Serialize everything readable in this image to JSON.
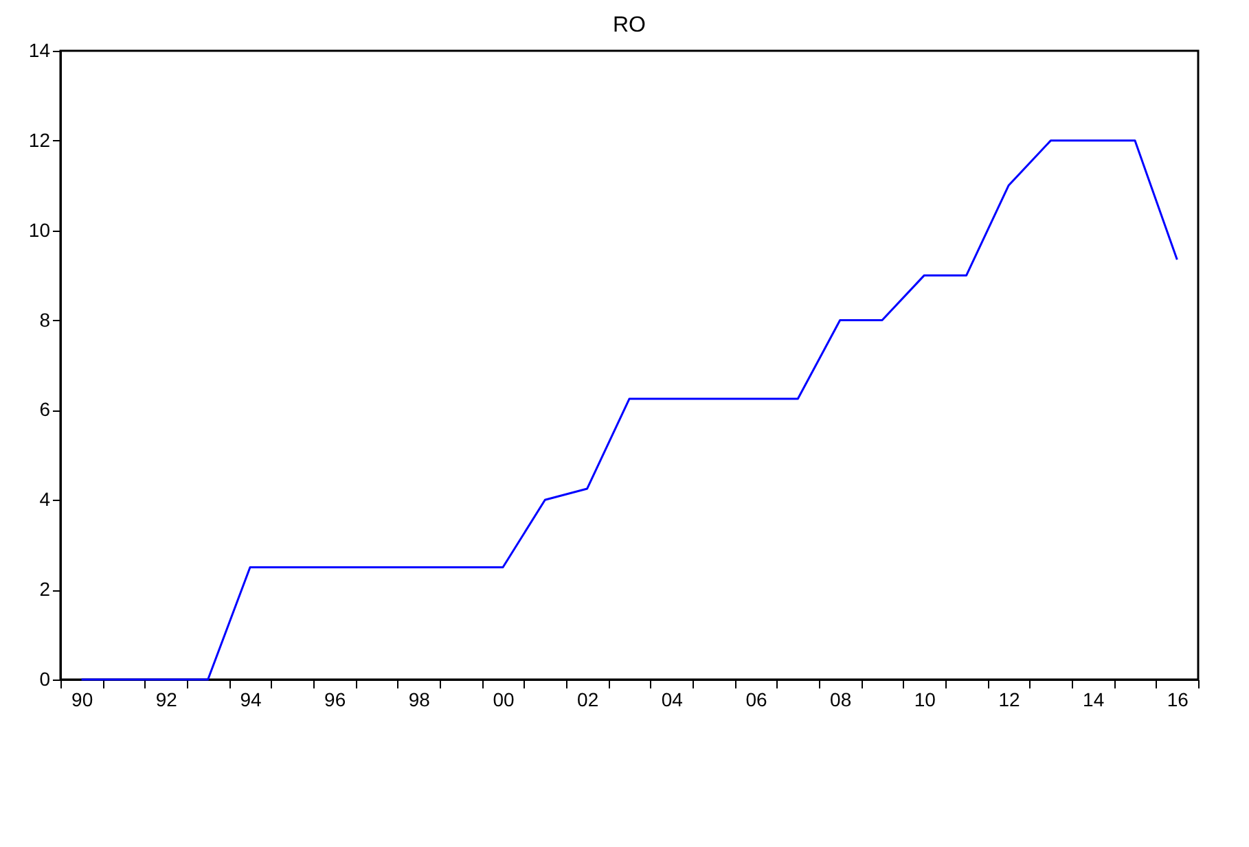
{
  "chart_data": {
    "type": "line",
    "title": "RO",
    "categories": [
      "90",
      null,
      "92",
      null,
      "94",
      null,
      "96",
      null,
      "98",
      null,
      "00",
      null,
      "02",
      null,
      "04",
      null,
      "06",
      null,
      "08",
      null,
      "10",
      null,
      "12",
      null,
      "14",
      null,
      "16"
    ],
    "series": [
      {
        "color": "#0000ff",
        "values": [
          0,
          0,
          0,
          0,
          2.5,
          2.5,
          2.5,
          2.5,
          2.5,
          2.5,
          2.5,
          4,
          4.25,
          6.25,
          6.25,
          6.25,
          6.25,
          6.25,
          8,
          8,
          9,
          9,
          11,
          12,
          12,
          12,
          9.35
        ]
      }
    ],
    "ylim": [
      0,
      14
    ],
    "yticks": [
      0,
      2,
      4,
      6,
      8,
      10,
      12,
      14
    ],
    "grid": false,
    "marker": "none",
    "line_style": "solid"
  }
}
